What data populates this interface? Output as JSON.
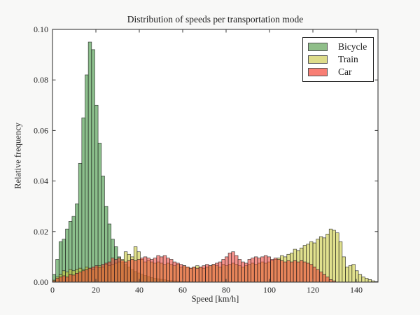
{
  "figure": {
    "title": "Distribution of speeds per transportation mode",
    "xlabel": "Speed [km/h]",
    "ylabel": "Relative frequency",
    "background_color": "#f8f8f7",
    "plot_background_color": "#ffffff",
    "spine_color": "#3a3a3a",
    "text_color": "#262626"
  },
  "legend": {
    "position": "upper right",
    "entries": [
      {
        "label": "Bicycle",
        "color": "#8fbe89"
      },
      {
        "label": "Train",
        "color": "#dedc8a"
      },
      {
        "label": "Car",
        "color": "#f87e74"
      }
    ]
  },
  "chart_data": {
    "type": "bar",
    "subtype": "histogram",
    "title": "Distribution of speeds per transportation mode",
    "xlabel": "Speed [km/h]",
    "ylabel": "Relative frequency",
    "xlim": [
      0,
      150
    ],
    "ylim": [
      0,
      0.1
    ],
    "grid": false,
    "legend_position": "upper right",
    "bin_start": 0,
    "bin_width": 1.5,
    "fill_opacity": 0.55,
    "edge_color": "#1f1f1f",
    "x_tick_labels": [
      "0",
      "20",
      "40",
      "60",
      "80",
      "100",
      "120",
      "140"
    ],
    "x_ticks": [
      0,
      20,
      40,
      60,
      80,
      100,
      120,
      140
    ],
    "y_tick_labels": [
      "0.00",
      "0.02",
      "0.04",
      "0.06",
      "0.08",
      "0.10"
    ],
    "y_ticks": [
      0,
      0.02,
      0.04,
      0.06,
      0.08,
      0.1
    ],
    "series": [
      {
        "name": "Bicycle",
        "color": "#2e8b2e",
        "values": [
          0.003,
          0.009,
          0.016,
          0.017,
          0.021,
          0.024,
          0.026,
          0.031,
          0.047,
          0.065,
          0.082,
          0.095,
          0.092,
          0.07,
          0.055,
          0.042,
          0.03,
          0.023,
          0.017,
          0.014,
          0.01,
          0.008,
          0.007,
          0.006,
          0.005,
          0.0042,
          0.0036,
          0.0031,
          0.0026,
          0.0022,
          0.0018,
          0.0015,
          0.0013,
          0.0011,
          0.0009,
          0.0007,
          0.0006,
          0.0005,
          0.0004,
          0.0003,
          0.0002,
          0.0002,
          0.0001,
          0.0001,
          0,
          0,
          0,
          0,
          0,
          0,
          0,
          0,
          0,
          0,
          0,
          0,
          0,
          0,
          0,
          0,
          0,
          0,
          0,
          0,
          0,
          0,
          0,
          0,
          0,
          0,
          0,
          0,
          0,
          0,
          0,
          0,
          0,
          0,
          0,
          0,
          0,
          0,
          0,
          0,
          0,
          0,
          0,
          0,
          0,
          0,
          0,
          0,
          0,
          0,
          0,
          0,
          0,
          0,
          0,
          0
        ]
      },
      {
        "name": "Train",
        "color": "#c8c832",
        "values": [
          0.0008,
          0.002,
          0.003,
          0.0045,
          0.004,
          0.005,
          0.0045,
          0.005,
          0.0055,
          0.005,
          0.006,
          0.0055,
          0.005,
          0.006,
          0.0065,
          0.006,
          0.007,
          0.0065,
          0.007,
          0.0075,
          0.008,
          0.009,
          0.012,
          0.011,
          0.01,
          0.014,
          0.012,
          0.009,
          0.008,
          0.0085,
          0.008,
          0.0075,
          0.008,
          0.0075,
          0.007,
          0.0075,
          0.007,
          0.0065,
          0.007,
          0.006,
          0.0065,
          0.006,
          0.0055,
          0.006,
          0.0065,
          0.006,
          0.0055,
          0.006,
          0.0065,
          0.007,
          0.0065,
          0.006,
          0.007,
          0.0065,
          0.007,
          0.0075,
          0.007,
          0.0065,
          0.006,
          0.0065,
          0.007,
          0.0075,
          0.007,
          0.0075,
          0.008,
          0.0075,
          0.008,
          0.0085,
          0.009,
          0.0095,
          0.0105,
          0.01,
          0.011,
          0.0115,
          0.013,
          0.0125,
          0.0135,
          0.0145,
          0.015,
          0.016,
          0.0155,
          0.017,
          0.018,
          0.0175,
          0.019,
          0.021,
          0.0205,
          0.0195,
          0.016,
          0.01,
          0.006,
          0.0065,
          0.007,
          0.0045,
          0.003,
          0.002,
          0.0015,
          0.001,
          0.0005,
          0.0002
        ]
      },
      {
        "name": "Car",
        "color": "#ee3a30",
        "values": [
          0.0005,
          0.0015,
          0.002,
          0.0025,
          0.002,
          0.003,
          0.0028,
          0.0035,
          0.004,
          0.0045,
          0.005,
          0.0055,
          0.006,
          0.0065,
          0.006,
          0.007,
          0.0075,
          0.008,
          0.0095,
          0.009,
          0.0095,
          0.0085,
          0.008,
          0.0085,
          0.009,
          0.0085,
          0.009,
          0.0095,
          0.01,
          0.0095,
          0.009,
          0.0095,
          0.0105,
          0.01,
          0.0105,
          0.0095,
          0.009,
          0.008,
          0.0075,
          0.007,
          0.0065,
          0.006,
          0.0055,
          0.006,
          0.0055,
          0.006,
          0.0065,
          0.007,
          0.0065,
          0.007,
          0.0075,
          0.008,
          0.009,
          0.01,
          0.0115,
          0.012,
          0.0105,
          0.009,
          0.008,
          0.0075,
          0.009,
          0.0095,
          0.01,
          0.0095,
          0.01,
          0.0105,
          0.01,
          0.009,
          0.0095,
          0.009,
          0.0085,
          0.008,
          0.0085,
          0.008,
          0.0085,
          0.008,
          0.0085,
          0.008,
          0.0075,
          0.007,
          0.006,
          0.005,
          0.004,
          0.003,
          0.002,
          0.001,
          0.0005,
          0,
          0,
          0,
          0,
          0,
          0,
          0,
          0,
          0,
          0,
          0,
          0,
          0
        ]
      }
    ]
  }
}
